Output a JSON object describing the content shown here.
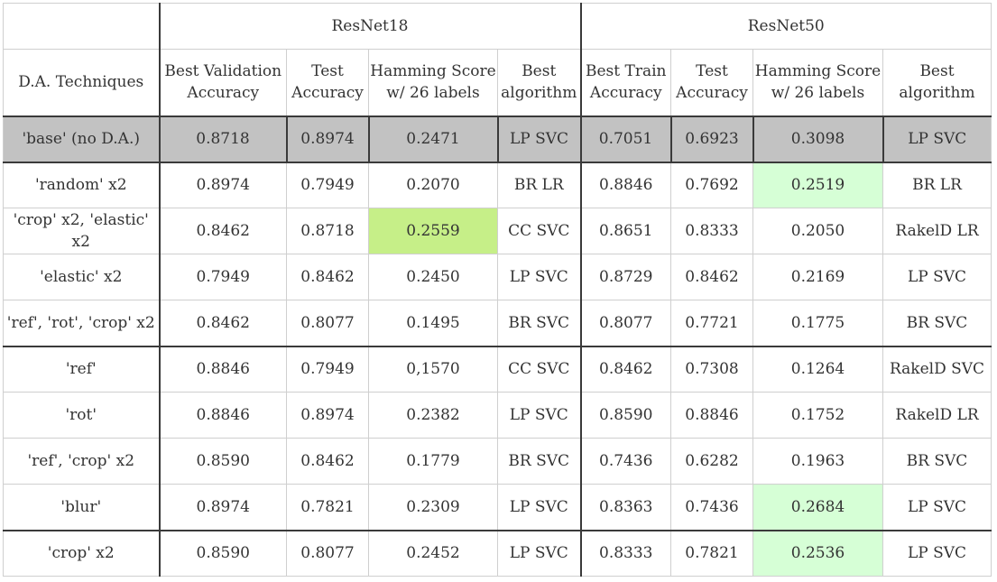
{
  "groups": {
    "resnet18": "ResNet18",
    "resnet50": "ResNet50"
  },
  "headers": {
    "technique": "D.A. Techniques",
    "r18_val_acc": "Best Validation Accuracy",
    "r18_test_acc": "Test Accuracy",
    "r18_hamming": "Hamming Score w/ 26 labels",
    "r18_algo": "Best algorithm",
    "r50_train_acc": "Best Train Accuracy",
    "r50_test_acc": "Test Accuracy",
    "r50_hamming": "Hamming Score w/ 26 labels",
    "r50_algo": "Best algorithm"
  },
  "rows": [
    [
      "'base' (no D.A.)",
      "0.8718",
      "0.8974",
      "0.2471",
      "LP SVC",
      "0.7051",
      "0.6923",
      "0.3098",
      "LP SVC"
    ],
    [
      "'random' x2",
      "0.8974",
      "0.7949",
      "0.2070",
      "BR LR",
      "0.8846",
      "0.7692",
      "0.2519",
      "BR LR"
    ],
    [
      "'crop' x2, 'elastic' x2",
      "0.8462",
      "0.8718",
      "0.2559",
      "CC SVC",
      "0.8651",
      "0.8333",
      "0.2050",
      "RakelD LR"
    ],
    [
      "'elastic' x2",
      "0.7949",
      "0.8462",
      "0.2450",
      "LP SVC",
      "0.8729",
      "0.8462",
      "0.2169",
      "LP SVC"
    ],
    [
      "'ref', 'rot', 'crop' x2",
      "0.8462",
      "0.8077",
      "0.1495",
      "BR SVC",
      "0.8077",
      "0.7721",
      "0.1775",
      "BR SVC"
    ],
    [
      "'ref'",
      "0.8846",
      "0.7949",
      "0,1570",
      "CC SVC",
      "0.8462",
      "0.7308",
      "0.1264",
      "RakelD SVC"
    ],
    [
      "'rot'",
      "0.8846",
      "0.8974",
      "0.2382",
      "LP SVC",
      "0.8590",
      "0.8846",
      "0.1752",
      "RakelD LR"
    ],
    [
      "'ref', 'crop' x2",
      "0.8590",
      "0.8462",
      "0.1779",
      "BR SVC",
      "0.7436",
      "0.6282",
      "0.1963",
      "BR SVC"
    ],
    [
      "'blur'",
      "0.8974",
      "0.7821",
      "0.2309",
      "LP SVC",
      "0.8363",
      "0.7436",
      "0.2684",
      "LP SVC"
    ],
    [
      "'crop' x2",
      "0.8590",
      "0.8077",
      "0.2452",
      "LP SVC",
      "0.8333",
      "0.7821",
      "0.2536",
      "LP SVC"
    ]
  ],
  "colors": {
    "base_row_bg": "#c2c2c2",
    "highlight_strong": "#c6ef88",
    "highlight_soft": "#d6ffd6"
  }
}
